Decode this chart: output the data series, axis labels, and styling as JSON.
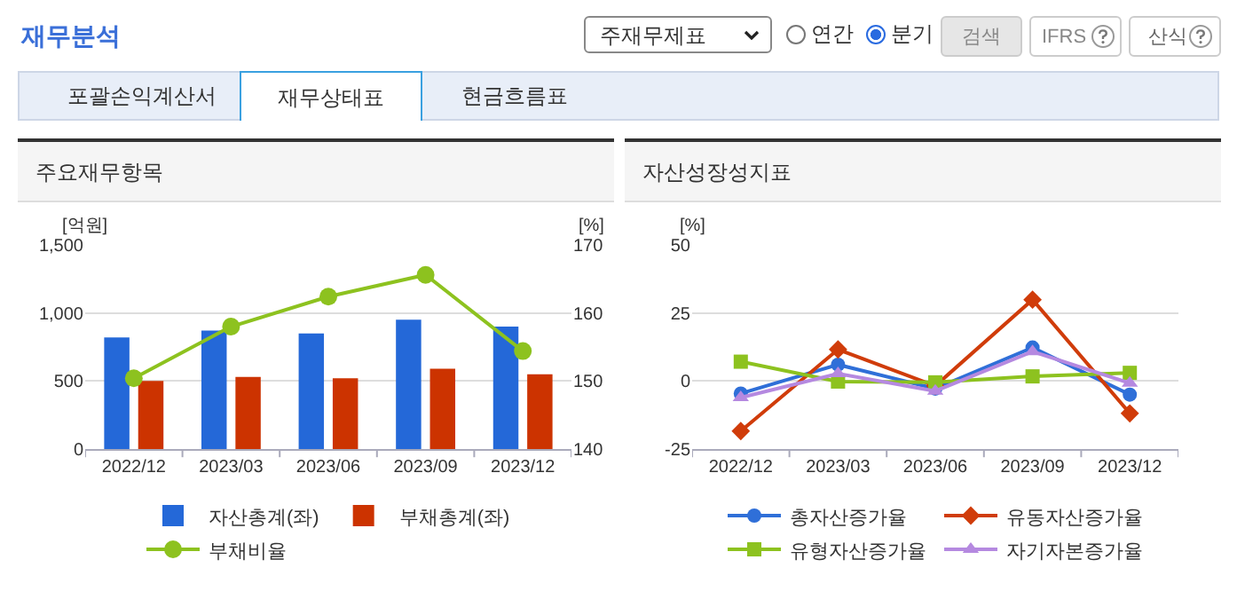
{
  "chart_data": [
    {
      "type": "other",
      "title": "재무분석",
      "annotations": [
        "주재무제표",
        "연간",
        "분기",
        "검색",
        "IFRS",
        "산식",
        "포괄손익계산서",
        "재무상태표",
        "현금흐름표"
      ]
    },
    {
      "type": "bar",
      "title": "주요재무항목",
      "ylabel": "[억원]",
      "y2label": "[%]",
      "categories": [
        "2022/12",
        "2023/03",
        "2023/06",
        "2023/09",
        "2023/12"
      ],
      "series": [
        {
          "name": "자산총계(좌)",
          "color": "#2468d8",
          "values": [
            820,
            870,
            850,
            950,
            900
          ]
        },
        {
          "name": "부채총계(좌)",
          "color": "#cc3300",
          "values": [
            500,
            530,
            520,
            590,
            550
          ]
        },
        {
          "name": "부채비율",
          "type": "line",
          "axis": "y2",
          "marker": "circle",
          "color": "#8dc21f",
          "values": [
            150.4,
            158.0,
            162.4,
            165.6,
            154.4
          ]
        }
      ],
      "ylim": [
        0,
        1500
      ],
      "yticks": [
        0,
        500,
        {
          "value": 1000,
          "label": "1,000"
        },
        {
          "value": 1500,
          "label": "1,500"
        }
      ],
      "y2lim": [
        140,
        170
      ],
      "y2ticks": [
        140,
        150,
        160,
        170
      ],
      "grid": "y",
      "legend": "bottom"
    },
    {
      "type": "line",
      "title": "자산성장성지표",
      "ylabel": "[%]",
      "categories": [
        "2022/12",
        "2023/03",
        "2023/06",
        "2023/09",
        "2023/12"
      ],
      "series": [
        {
          "name": "총자산증가율",
          "marker": "circle",
          "color": "#2f6fd8",
          "values": [
            -4.6,
            6.0,
            -2.8,
            12.3,
            -5.0
          ]
        },
        {
          "name": "유동자산증가율",
          "marker": "diamond",
          "color": "#d03c0a",
          "values": [
            -18.4,
            11.6,
            -1.8,
            29.9,
            -11.9
          ]
        },
        {
          "name": "유형자산증가율",
          "marker": "square",
          "color": "#8dc21f",
          "values": [
            7.1,
            -0.2,
            -0.5,
            1.7,
            3.0
          ]
        },
        {
          "name": "자기자본증가율",
          "marker": "triangle",
          "color": "#b589e0",
          "values": [
            -6.1,
            2.7,
            -3.7,
            10.8,
            -0.8
          ]
        }
      ],
      "ylim": [
        -25,
        50
      ],
      "yticks": [
        -25,
        0,
        25,
        50
      ],
      "grid": "y",
      "legend": "bottom"
    }
  ]
}
